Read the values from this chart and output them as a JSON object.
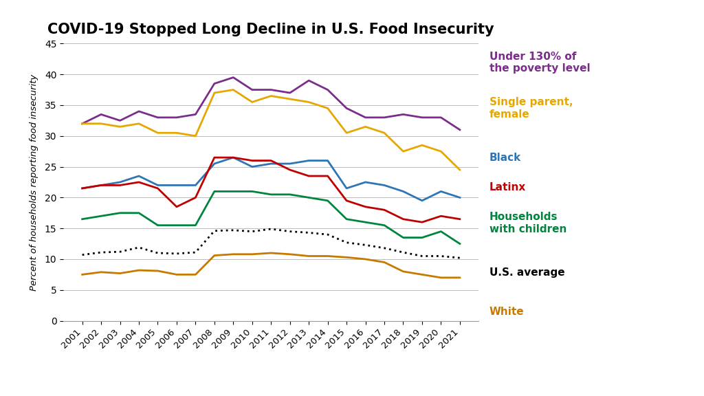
{
  "title": "COVID-19 Stopped Long Decline in U.S. Food Insecurity",
  "ylabel": "Percent of households reporting food insecurity",
  "years": [
    2001,
    2002,
    2003,
    2004,
    2005,
    2006,
    2007,
    2008,
    2009,
    2010,
    2011,
    2012,
    2013,
    2014,
    2015,
    2016,
    2017,
    2018,
    2019,
    2020,
    2021
  ],
  "series": [
    {
      "label": "Under 130% of\nthe poverty level",
      "color": "#7B2D8B",
      "style": "solid",
      "values": [
        32.0,
        33.5,
        32.5,
        34.0,
        33.0,
        33.0,
        33.5,
        38.5,
        39.5,
        37.5,
        37.5,
        37.0,
        39.0,
        37.5,
        34.5,
        33.0,
        33.0,
        33.5,
        33.0,
        33.0,
        31.0
      ]
    },
    {
      "label": "Single parent,\nfemale",
      "color": "#E6A800",
      "style": "solid",
      "values": [
        32.0,
        32.0,
        31.5,
        32.0,
        30.5,
        30.5,
        30.0,
        37.0,
        37.5,
        35.5,
        36.5,
        36.0,
        35.5,
        34.5,
        30.5,
        31.5,
        30.5,
        27.5,
        28.5,
        27.5,
        24.5
      ]
    },
    {
      "label": "Black",
      "color": "#2E75B6",
      "style": "solid",
      "values": [
        21.5,
        22.0,
        22.5,
        23.5,
        22.0,
        22.0,
        22.0,
        25.5,
        26.5,
        25.0,
        25.5,
        25.5,
        26.0,
        26.0,
        21.5,
        22.5,
        22.0,
        21.0,
        19.5,
        21.0,
        20.0
      ]
    },
    {
      "label": "Latinx",
      "color": "#C00000",
      "style": "solid",
      "values": [
        21.5,
        22.0,
        22.0,
        22.5,
        21.5,
        18.5,
        20.0,
        26.5,
        26.5,
        26.0,
        26.0,
        24.5,
        23.5,
        23.5,
        19.5,
        18.5,
        18.0,
        16.5,
        16.0,
        17.0,
        16.5
      ]
    },
    {
      "label": "Households\nwith children",
      "color": "#00853E",
      "style": "solid",
      "values": [
        16.5,
        17.0,
        17.5,
        17.5,
        15.5,
        15.5,
        15.5,
        21.0,
        21.0,
        21.0,
        20.5,
        20.5,
        20.0,
        19.5,
        16.5,
        16.0,
        15.5,
        13.5,
        13.5,
        14.5,
        12.5
      ]
    },
    {
      "label": "U.S. average",
      "color": "#000000",
      "style": "dotted",
      "values": [
        10.7,
        11.1,
        11.2,
        11.9,
        11.0,
        10.9,
        11.1,
        14.6,
        14.7,
        14.5,
        14.9,
        14.5,
        14.3,
        14.0,
        12.7,
        12.3,
        11.8,
        11.1,
        10.5,
        10.5,
        10.2
      ]
    },
    {
      "label": "White",
      "color": "#C67A00",
      "style": "solid",
      "values": [
        7.5,
        7.9,
        7.7,
        8.2,
        8.1,
        7.5,
        7.5,
        10.6,
        10.8,
        10.8,
        11.0,
        10.8,
        10.5,
        10.5,
        10.3,
        10.0,
        9.5,
        8.0,
        7.5,
        7.0,
        7.0
      ]
    }
  ],
  "ylim": [
    0,
    45
  ],
  "yticks": [
    0,
    5,
    10,
    15,
    20,
    25,
    30,
    35,
    40,
    45
  ],
  "background_color": "#FFFFFF",
  "grid_color": "#BBBBBB"
}
